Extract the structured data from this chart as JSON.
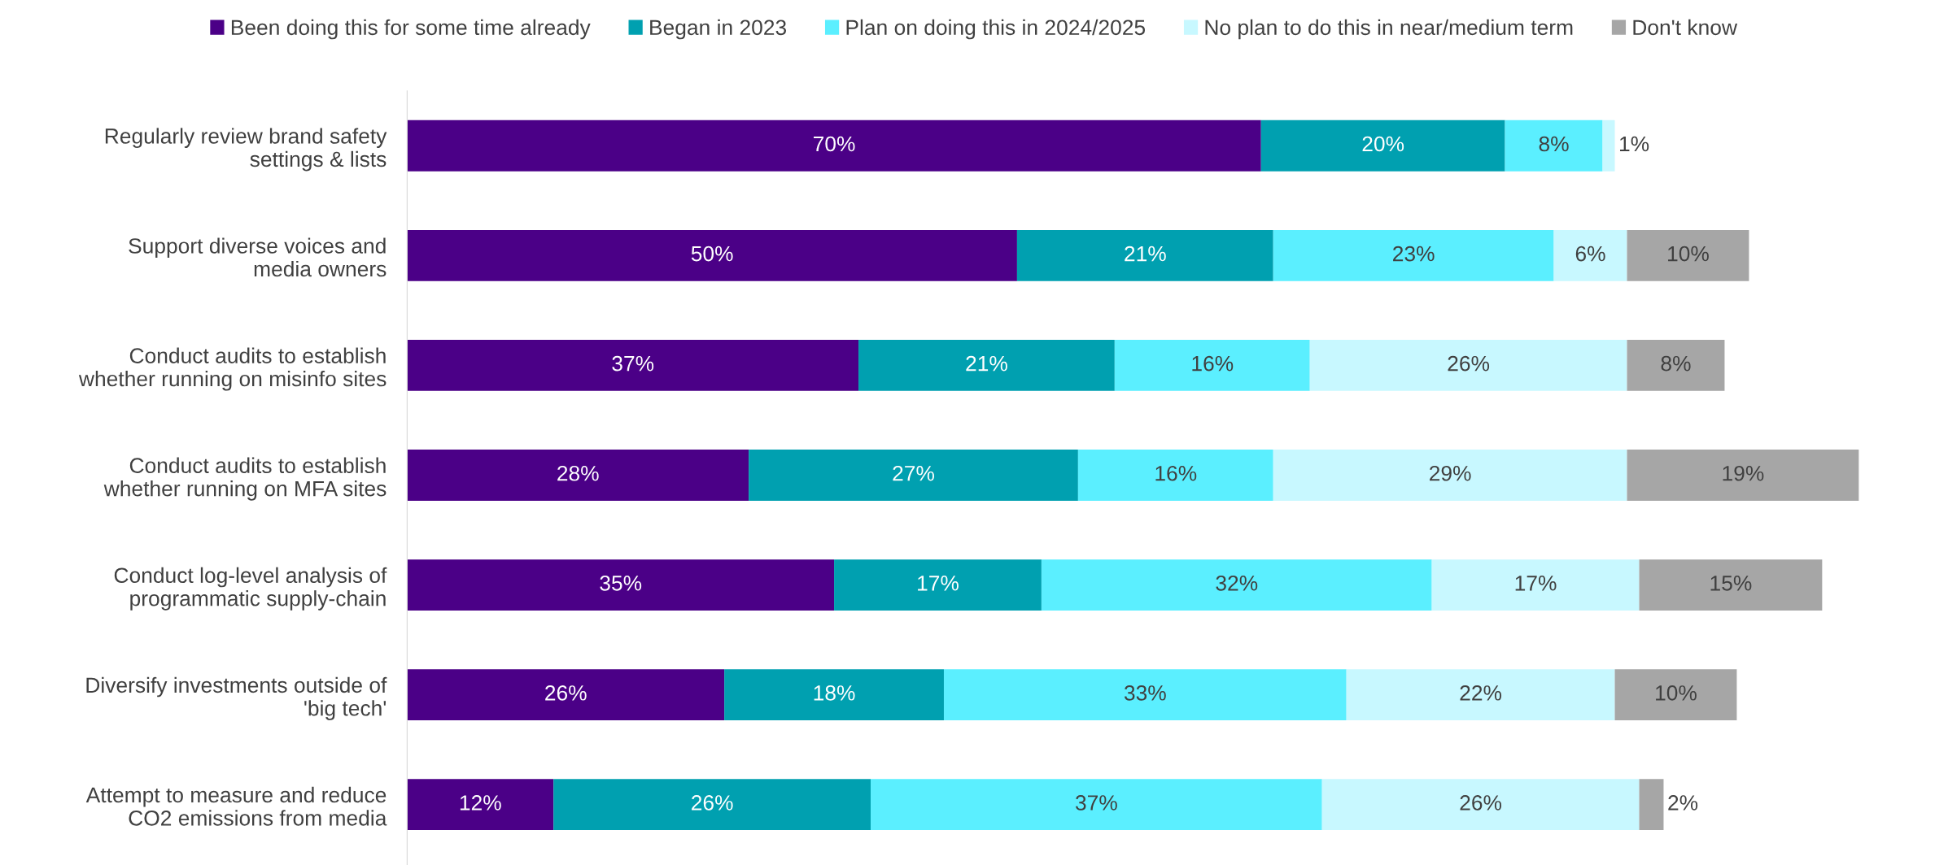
{
  "chart_data": {
    "type": "bar",
    "orientation": "horizontal",
    "stacked": true,
    "legend": "top",
    "grid": false,
    "tick_labels": "y",
    "categories": [
      "Regularly review brand safety\nsettings & lists",
      "Support diverse voices and\nmedia owners",
      "Conduct audits to establish\nwhether running on misinfo sites",
      "Conduct audits to establish\nwhether running on MFA sites",
      "Conduct log-level analysis of\nprogrammatic supply-chain",
      "Diversify investments outside of\n'big tech'",
      "Attempt to measure and reduce\nCO2 emissions from media"
    ],
    "series": [
      {
        "name": "Been doing this for some time already",
        "color": "#4b0087",
        "values": [
          70,
          50,
          37,
          28,
          35,
          26,
          12
        ],
        "value_labels": [
          "70%",
          "50%",
          "37%",
          "28%",
          "35%",
          "26%",
          "12%"
        ]
      },
      {
        "name": "Began in 2023",
        "color": "#00a0b0",
        "values": [
          20,
          21,
          21,
          27,
          17,
          18,
          26
        ],
        "value_labels": [
          "20%",
          "21%",
          "21%",
          "27%",
          "17%",
          "18%",
          "26%"
        ]
      },
      {
        "name": "Plan on doing this in 2024/2025",
        "color": "#5befff",
        "values": [
          8,
          23,
          16,
          16,
          32,
          33,
          37
        ],
        "value_labels": [
          "8%",
          "23%",
          "16%",
          "16%",
          "32%",
          "33%",
          "37%"
        ]
      },
      {
        "name": "No plan to do this in near/medium term",
        "color": "#c8f8ff",
        "values": [
          1,
          6,
          26,
          29,
          17,
          22,
          26
        ],
        "value_labels": [
          "1%",
          "6%",
          "26%",
          "29%",
          "17%",
          "22%",
          "26%"
        ]
      },
      {
        "name": "Don't know",
        "color": "#a6a6a6",
        "values": [
          null,
          10,
          8,
          19,
          15,
          10,
          2
        ],
        "value_labels": [
          null,
          "10%",
          "8%",
          "19%",
          "15%",
          "10%",
          "2%"
        ]
      }
    ]
  }
}
